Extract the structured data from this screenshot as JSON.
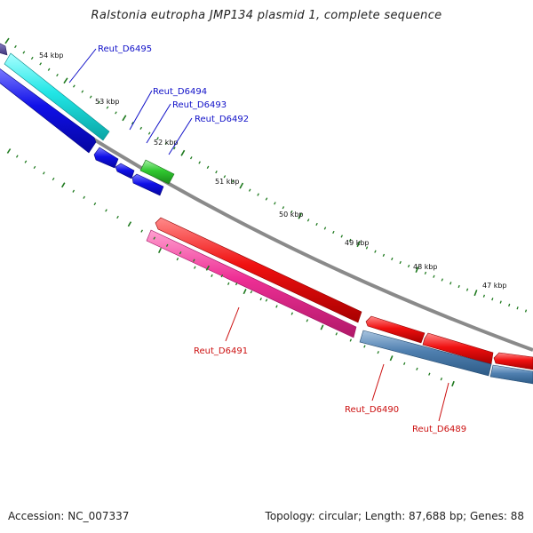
{
  "title": "Ralstonia eutropha JMP134 plasmid 1, complete sequence",
  "footer": {
    "accession": "Accession: NC_007337",
    "summary": "Topology: circular; Length: 87,688 bp; Genes: 88"
  },
  "kbp_labels": [
    "54 kbp",
    "53 kbp",
    "52 kbp",
    "51 kbp",
    "50 kbp",
    "49 kbp",
    "48 kbp",
    "47 kbp"
  ],
  "genes": [
    {
      "name": "Reut_D6495",
      "strand": "minus",
      "color": "#1fe0e0"
    },
    {
      "name": "Reut_D6494",
      "strand": "minus",
      "color": "#0f0fe6"
    },
    {
      "name": "Reut_D6493",
      "strand": "minus",
      "color": "#0f0fe6"
    },
    {
      "name": "Reut_D6492",
      "strand": "minus",
      "color": "#2ec52e"
    },
    {
      "name": "Reut_D6491",
      "strand": "plus",
      "color": "#ee2f95"
    },
    {
      "name": "Reut_D6490",
      "strand": "plus",
      "color": "#4f7fb0"
    },
    {
      "name": "Reut_D6489",
      "strand": "plus",
      "color": "#ee1010"
    }
  ],
  "colors": {
    "backbone": "#8a8a8a",
    "tick": "#1f7a1f",
    "label_blue": "#1010c8",
    "label_red": "#cc1010"
  }
}
